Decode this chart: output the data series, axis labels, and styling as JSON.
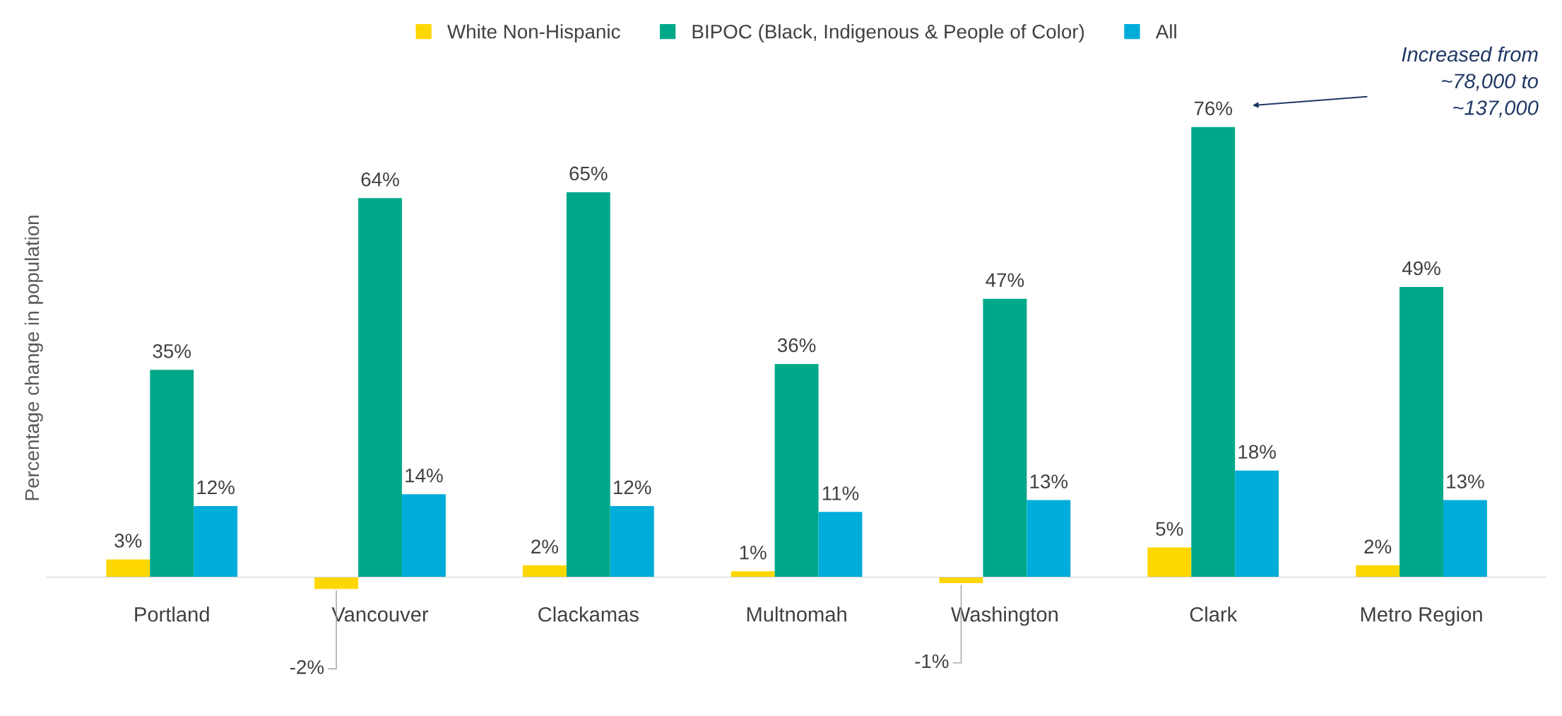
{
  "chart_data": {
    "type": "bar",
    "ylabel": "Percentage change in population",
    "categories": [
      "Portland",
      "Vancouver",
      "Clackamas",
      "Multnomah",
      "Washington",
      "Clark",
      "Metro Region"
    ],
    "series": [
      {
        "name": "White Non-Hispanic",
        "color": "#ffd700",
        "values": [
          3,
          -2,
          2,
          1,
          -1,
          5,
          2
        ],
        "value_labels": [
          "3%",
          "-2%",
          "2%",
          "1%",
          "-1%",
          "5%",
          "2%"
        ]
      },
      {
        "name": "BIPOC (Black, Indigenous & People of Color)",
        "color": "#00a88a",
        "values": [
          35,
          64,
          65,
          36,
          47,
          76,
          49
        ],
        "value_labels": [
          "35%",
          "64%",
          "65%",
          "36%",
          "47%",
          "76%",
          "49%"
        ]
      },
      {
        "name": "All",
        "color": "#00acd9",
        "values": [
          12,
          14,
          12,
          11,
          13,
          18,
          13
        ],
        "value_labels": [
          "12%",
          "14%",
          "12%",
          "11%",
          "13%",
          "18%",
          "13%"
        ]
      }
    ],
    "annotations": [
      "Increased from\n~78,000 to\n~137,000"
    ],
    "legend": "top",
    "grid": false
  }
}
